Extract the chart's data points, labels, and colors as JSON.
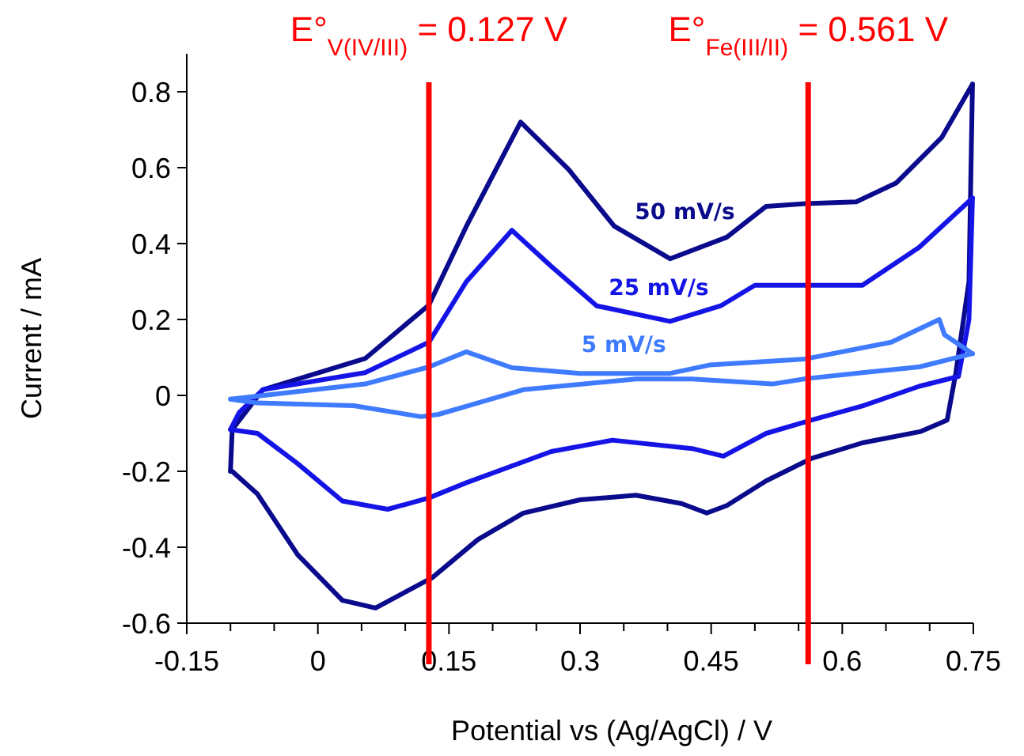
{
  "chart_data": {
    "type": "line",
    "xlabel": "Potential vs (Ag/AgCl) / V",
    "ylabel": "Current / mA",
    "xlim": [
      -0.15,
      0.75
    ],
    "ylim": [
      -0.6,
      0.9
    ],
    "xticks": [
      -0.15,
      {
        "value": -0.1,
        "label": null
      },
      {
        "value": -0.05,
        "label": null
      },
      0,
      {
        "value": 0.05,
        "label": null
      },
      {
        "value": 0.1,
        "label": null
      },
      0.15,
      {
        "value": 0.2,
        "label": null
      },
      {
        "value": 0.25,
        "label": null
      },
      0.3,
      {
        "value": 0.35,
        "label": null
      },
      {
        "value": 0.4,
        "label": null
      },
      0.45,
      {
        "value": 0.5,
        "label": null
      },
      {
        "value": 0.55,
        "label": null
      },
      0.6,
      {
        "value": 0.65,
        "label": null
      },
      {
        "value": 0.7,
        "label": null
      },
      0.75
    ],
    "yticks": [
      -0.6,
      -0.4,
      -0.2,
      0,
      0.2,
      0.4,
      0.6,
      0.8
    ],
    "grid": false,
    "legend": false,
    "marker": "none",
    "line_style": "solid",
    "series": [
      {
        "name": "50 mV/s",
        "color": "#0a0a8c",
        "x": [
          -0.1,
          -0.098,
          -0.063,
          0.054,
          0.127,
          0.17,
          0.232,
          0.287,
          0.339,
          0.403,
          0.468,
          0.513,
          0.558,
          0.616,
          0.662,
          0.714,
          0.749
        ],
        "values": [
          -0.2,
          -0.09,
          0.015,
          0.097,
          0.238,
          0.446,
          0.72,
          0.595,
          0.446,
          0.36,
          0.417,
          0.498,
          0.505,
          0.51,
          0.56,
          0.68,
          0.82
        ]
      },
      {
        "color": "#0a0a8c",
        "x": [
          0.749,
          0.745,
          0.73,
          0.72,
          0.69,
          0.623,
          0.565,
          0.513,
          0.468,
          0.445,
          0.416,
          0.364,
          0.3,
          0.235,
          0.183,
          0.131,
          0.066,
          0.028,
          -0.023,
          -0.069,
          -0.098,
          -0.1
        ],
        "values": [
          0.82,
          0.3,
          0.06,
          -0.065,
          -0.095,
          -0.125,
          -0.166,
          -0.225,
          -0.29,
          -0.31,
          -0.285,
          -0.263,
          -0.275,
          -0.31,
          -0.38,
          -0.48,
          -0.56,
          -0.54,
          -0.42,
          -0.26,
          -0.2,
          -0.2
        ]
      },
      {
        "name": "25 mV/s",
        "color": "#1414e6",
        "x": [
          -0.1,
          -0.09,
          -0.063,
          0.054,
          0.127,
          0.17,
          0.222,
          0.267,
          0.319,
          0.403,
          0.461,
          0.5,
          0.558,
          0.623,
          0.688,
          0.749
        ],
        "values": [
          -0.09,
          -0.045,
          0.015,
          0.06,
          0.14,
          0.3,
          0.435,
          0.34,
          0.236,
          0.195,
          0.236,
          0.29,
          0.29,
          0.29,
          0.39,
          0.52
        ]
      },
      {
        "color": "#1414e6",
        "x": [
          0.749,
          0.745,
          0.733,
          0.688,
          0.623,
          0.565,
          0.513,
          0.464,
          0.428,
          0.337,
          0.267,
          0.17,
          0.127,
          0.08,
          0.028,
          -0.023,
          -0.069,
          -0.1
        ],
        "values": [
          0.52,
          0.2,
          0.05,
          0.024,
          -0.028,
          -0.065,
          -0.1,
          -0.16,
          -0.14,
          -0.118,
          -0.148,
          -0.23,
          -0.27,
          -0.3,
          -0.278,
          -0.18,
          -0.1,
          -0.09
        ]
      },
      {
        "name": "5 mV/s",
        "color": "#3f7bff",
        "x": [
          -0.1,
          0.054,
          0.127,
          0.17,
          0.222,
          0.3,
          0.403,
          0.448,
          0.558,
          0.656,
          0.711,
          0.717,
          0.749
        ],
        "values": [
          -0.01,
          0.03,
          0.075,
          0.115,
          0.073,
          0.058,
          0.058,
          0.08,
          0.096,
          0.14,
          0.2,
          0.16,
          0.11
        ]
      },
      {
        "color": "#3f7bff",
        "x": [
          0.749,
          0.688,
          0.623,
          0.558,
          0.52,
          0.428,
          0.364,
          0.235,
          0.138,
          0.118,
          0.041,
          -0.069,
          -0.1
        ],
        "values": [
          0.11,
          0.075,
          0.06,
          0.044,
          0.03,
          0.043,
          0.043,
          0.015,
          -0.05,
          -0.056,
          -0.027,
          -0.02,
          -0.01
        ]
      }
    ],
    "ref_lines": [
      {
        "axis": "x",
        "value": 0.127,
        "label": "E°$_{V(IV/III)}$ = 0.127 V",
        "color": "#ff0000"
      },
      {
        "axis": "x",
        "value": 0.561,
        "label": "E°$_{Fe(III/II)}$ = 0.561 V",
        "color": "#ff0000"
      }
    ]
  }
}
